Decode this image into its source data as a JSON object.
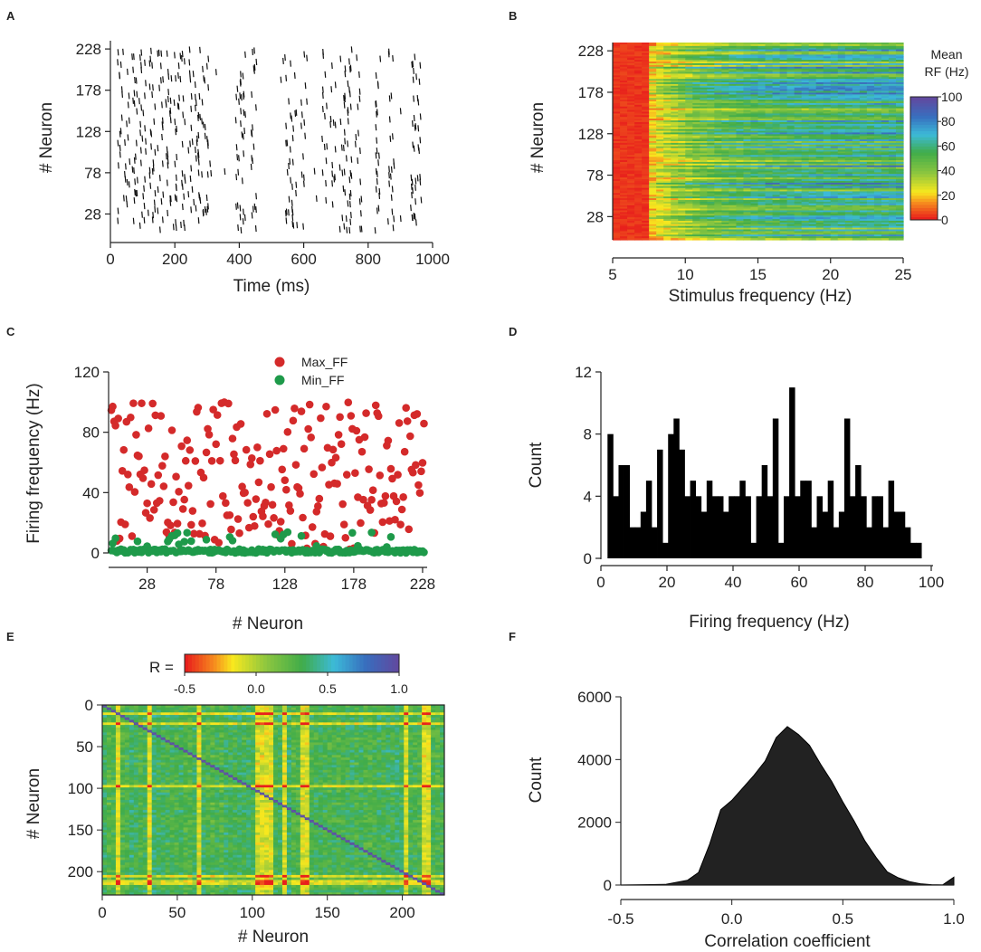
{
  "panels": [
    {
      "label": "A",
      "chart_data": {
        "type": "scatter",
        "title": "",
        "xlabel": "Time (ms)",
        "ylabel": "# Neuron",
        "xlim": [
          0,
          1000
        ],
        "ylim": [
          0,
          238
        ],
        "xticks": [
          0,
          200,
          400,
          600,
          800,
          1000
        ],
        "yticks": [
          28,
          78,
          128,
          178,
          228
        ],
        "note": "raster plot of spike times; bursts near listed times",
        "burst_times_ms": [
          30,
          50,
          75,
          100,
          130,
          155,
          180,
          205,
          225,
          250,
          270,
          280,
          295,
          395,
          410,
          445,
          550,
          570,
          600,
          665,
          690,
          720,
          740,
          770,
          830,
          870,
          940,
          955
        ]
      }
    },
    {
      "label": "B",
      "chart_data": {
        "type": "heatmap",
        "title": "",
        "xlabel": "Stimulus frequency (Hz)",
        "ylabel": "# Neuron",
        "xlim": [
          5,
          25
        ],
        "ylim": [
          0,
          238
        ],
        "xticks": [
          5,
          10,
          15,
          20,
          25
        ],
        "yticks": [
          28,
          78,
          128,
          178,
          228
        ],
        "colorbar": {
          "title_line1": "Mean",
          "title_line2": "RF (Hz)",
          "range": [
            0,
            100
          ],
          "ticks": [
            0,
            20,
            40,
            60,
            80,
            100
          ]
        }
      }
    },
    {
      "label": "C",
      "chart_data": {
        "type": "scatter",
        "title": "",
        "xlabel": "# Neuron",
        "ylabel": "Firing frequency (Hz)",
        "xlim": [
          0,
          230
        ],
        "ylim": [
          0,
          120
        ],
        "xticks": [
          28,
          78,
          128,
          178,
          228
        ],
        "yticks": [
          0,
          40,
          80,
          120
        ],
        "legend_position": "top-center",
        "series": [
          {
            "name": "Max_FF",
            "color": "#d42a2a",
            "values_range": [
              1,
              101
            ]
          },
          {
            "name": "Min_FF",
            "color": "#1e9a4a",
            "values_range": [
              0,
              14
            ]
          }
        ]
      }
    },
    {
      "label": "D",
      "chart_data": {
        "type": "bar",
        "title": "",
        "xlabel": "Firing frequency (Hz)",
        "ylabel": "Count",
        "xlim": [
          0,
          100
        ],
        "ylim": [
          0,
          12
        ],
        "xticks": [
          0,
          20,
          40,
          60,
          80,
          100
        ],
        "yticks": [
          0,
          4,
          8,
          12
        ],
        "bin_start": 2,
        "bin_width": 1.667,
        "values": [
          8,
          4,
          6,
          6,
          2,
          2,
          3,
          5,
          2,
          7,
          1,
          8,
          9,
          7,
          4,
          5,
          4,
          3,
          5,
          4,
          4,
          3,
          4,
          4,
          5,
          4,
          1,
          4,
          6,
          4,
          9,
          1,
          4,
          11,
          4,
          5,
          5,
          2,
          4,
          3,
          5,
          2,
          3,
          9,
          4,
          6,
          4,
          2,
          4,
          4,
          2,
          5,
          3,
          3,
          2,
          1,
          1
        ]
      }
    },
    {
      "label": "E",
      "chart_data": {
        "type": "heatmap",
        "title": "",
        "xlabel": "# Neuron",
        "ylabel": "# Neuron",
        "xlim": [
          0,
          228
        ],
        "ylim": [
          228,
          0
        ],
        "xticks": [
          0,
          50,
          100,
          150,
          200
        ],
        "yticks": [
          0,
          50,
          100,
          150,
          200
        ],
        "colorbar": {
          "label": "R =",
          "range": [
            -0.5,
            1.0
          ],
          "ticks": [
            "-0.5",
            "0.0",
            "0.5",
            "1.0"
          ]
        }
      }
    },
    {
      "label": "F",
      "chart_data": {
        "type": "area",
        "title": "",
        "xlabel": "Correlation coefficient",
        "ylabel": "Count",
        "xlim": [
          -0.5,
          1.0
        ],
        "ylim": [
          0,
          6000
        ],
        "xticks": [
          "-0.5",
          "0.0",
          "0.5",
          "1.0"
        ],
        "yticks": [
          0,
          2000,
          4000,
          6000
        ],
        "x": [
          -0.5,
          -0.3,
          -0.2,
          -0.15,
          -0.1,
          -0.05,
          0.0,
          0.05,
          0.1,
          0.15,
          0.2,
          0.25,
          0.3,
          0.35,
          0.4,
          0.45,
          0.5,
          0.55,
          0.6,
          0.65,
          0.7,
          0.75,
          0.8,
          0.85,
          0.9,
          0.95,
          1.0
        ],
        "values": [
          0,
          20,
          150,
          400,
          1300,
          2400,
          2700,
          3100,
          3500,
          3950,
          4700,
          5050,
          4800,
          4450,
          3850,
          3300,
          2650,
          2050,
          1400,
          880,
          420,
          230,
          110,
          40,
          10,
          5,
          250
        ]
      }
    }
  ]
}
